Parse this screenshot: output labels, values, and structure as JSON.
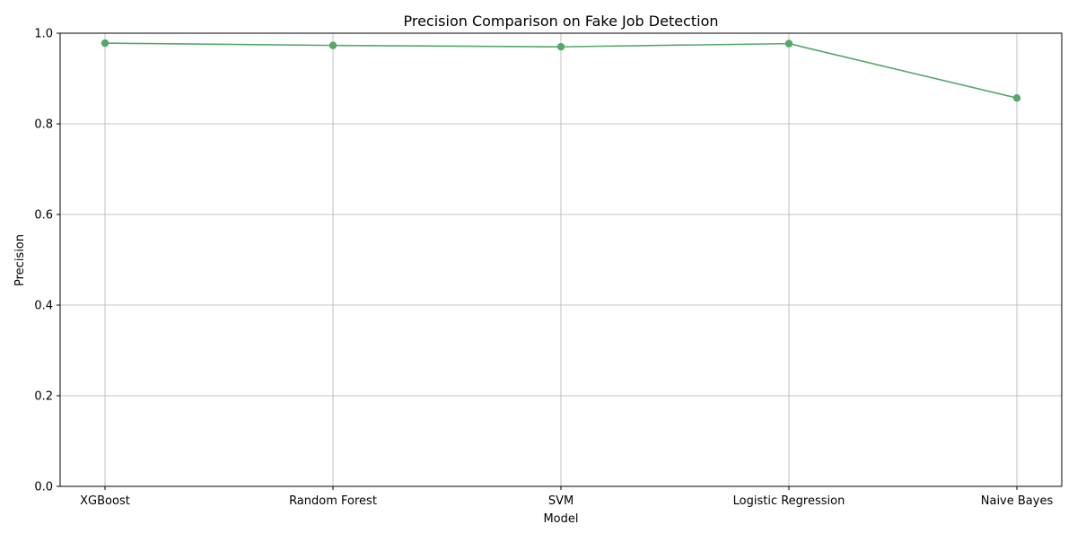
{
  "chart_data": {
    "type": "line",
    "title": "Precision Comparison on Fake Job Detection",
    "xlabel": "Model",
    "ylabel": "Precision",
    "categories": [
      "XGBoost",
      "Random Forest",
      "SVM",
      "Logistic Regression",
      "Naive Bayes"
    ],
    "series": [
      {
        "values": [
          0.978,
          0.973,
          0.97,
          0.977,
          0.857
        ],
        "color": "#55a868",
        "marker": "circle"
      }
    ],
    "ylim": [
      0.0,
      1.0
    ],
    "yticks": [
      "0.0",
      "0.2",
      "0.4",
      "0.6",
      "0.8",
      "1.0"
    ],
    "grid": true,
    "legend": "none"
  }
}
